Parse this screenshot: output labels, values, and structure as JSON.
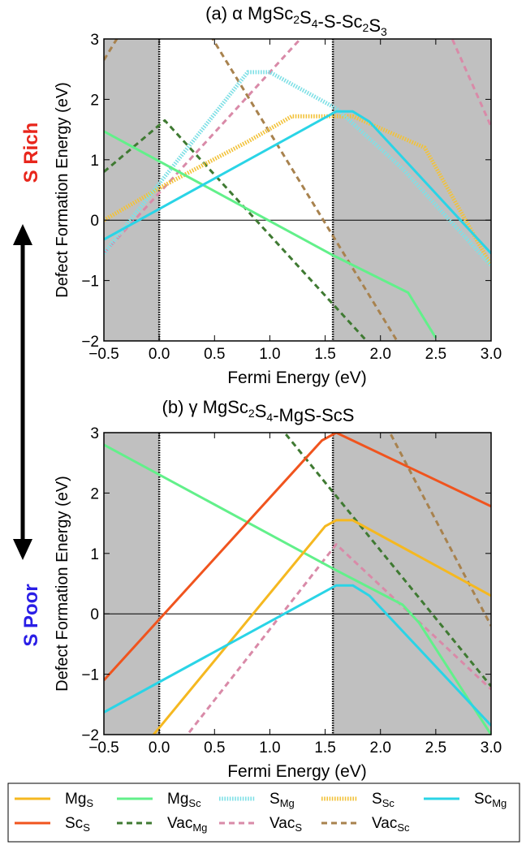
{
  "figure": {
    "side_label_top": "S Rich",
    "side_label_bottom": "S Poor",
    "colors": {
      "shade": "#c0c0c0",
      "s_rich": "#e8261c",
      "s_poor": "#2a1ee6",
      "arrow": "#000000"
    }
  },
  "legend": {
    "entries": [
      {
        "label": "Mg",
        "sub": "S",
        "color": "#f5b820",
        "style": "solid"
      },
      {
        "label": "Mg",
        "sub": "Sc",
        "color": "#62f08a",
        "style": "solid"
      },
      {
        "label": "S",
        "sub": "Mg",
        "color": "#7fe0e6",
        "style": "dotted"
      },
      {
        "label": "S",
        "sub": "Sc",
        "color": "#f2c23a",
        "style": "dotted"
      },
      {
        "label": "Sc",
        "sub": "Mg",
        "color": "#2ad4e6",
        "style": "solid"
      },
      {
        "label": "Sc",
        "sub": "S",
        "color": "#f0541e",
        "style": "solid"
      },
      {
        "label": "Vac",
        "sub": "Mg",
        "color": "#3f7a32",
        "style": "dashed"
      },
      {
        "label": "Vac",
        "sub": "S",
        "color": "#d98aa8",
        "style": "dashed"
      },
      {
        "label": "Vac",
        "sub": "Sc",
        "color": "#a8824e",
        "style": "dashed"
      }
    ]
  },
  "chart_data": [
    {
      "type": "line",
      "title_prefix": "(a) α MgSc",
      "title_parts": [
        [
          "(a) α MgSc",
          ""
        ],
        [
          "2",
          "sub"
        ],
        [
          "S",
          ""
        ],
        [
          "4",
          "sub"
        ],
        [
          "-S-Sc",
          ""
        ],
        [
          "2",
          "sub"
        ],
        [
          "S",
          ""
        ],
        [
          "3",
          "sub"
        ]
      ],
      "xlabel": "Fermi Energy (eV)",
      "ylabel": "Defect Formation Energy (eV)",
      "xlim": [
        -0.5,
        3.0
      ],
      "ylim": [
        -2,
        3
      ],
      "xticks": [
        "−0.5",
        "0.0",
        "0.5",
        "1.0",
        "1.5",
        "2.0",
        "2.5",
        "3.0"
      ],
      "xtick_values": [
        -0.5,
        0.0,
        0.5,
        1.0,
        1.5,
        2.0,
        2.5,
        3.0
      ],
      "yticks": [
        "−2",
        "−1",
        "0",
        "1",
        "2",
        "3"
      ],
      "ytick_values": [
        -2,
        -1,
        0,
        1,
        2,
        3
      ],
      "shaded_regions": [
        [
          -0.5,
          0.0
        ],
        [
          1.57,
          3.0
        ]
      ],
      "vlines": [
        0.0,
        1.57
      ],
      "hline": 0,
      "series": [
        {
          "key": "Vac_Mg",
          "x": [
            -0.5,
            0.05,
            2.0
          ],
          "y": [
            0.8,
            1.65,
            -2.25
          ]
        },
        {
          "key": "Vac_Sc",
          "x": [
            -0.5,
            0.05,
            2.2
          ],
          "y": [
            2.65,
            4.3,
            -2.15
          ]
        },
        {
          "key": "Vac_S",
          "x": [
            -0.5,
            2.2,
            3.0
          ],
          "y": [
            -0.55,
            4.85,
            1.55
          ]
        },
        {
          "key": "S_Sc",
          "x": [
            -0.5,
            0.05,
            0.8,
            1.2,
            1.75,
            2.4,
            3.0
          ],
          "y": [
            0.0,
            0.58,
            1.3,
            1.72,
            1.72,
            1.2,
            -0.75
          ]
        },
        {
          "key": "S_Mg",
          "x": [
            -0.5,
            0.8,
            1.0,
            1.6,
            2.2,
            3.0
          ],
          "y": [
            -0.55,
            2.45,
            2.45,
            1.85,
            0.85,
            -0.75
          ]
        },
        {
          "key": "Mg_Sc",
          "x": [
            -0.5,
            1.57,
            2.25,
            2.5
          ],
          "y": [
            1.47,
            -0.58,
            -1.2,
            -1.95
          ]
        },
        {
          "key": "Sc_Mg",
          "x": [
            -0.5,
            1.6,
            1.75,
            1.9,
            3.0
          ],
          "y": [
            -0.32,
            1.8,
            1.8,
            1.63,
            -0.55
          ]
        }
      ]
    },
    {
      "type": "line",
      "title_parts": [
        [
          "(b) γ MgSc",
          ""
        ],
        [
          "2",
          "sub"
        ],
        [
          "S",
          ""
        ],
        [
          "4",
          "sub"
        ],
        [
          "-MgS-ScS",
          ""
        ]
      ],
      "xlabel": "Fermi Energy (eV)",
      "ylabel": "Defect Formation Energy (eV)",
      "xlim": [
        -0.5,
        3.0
      ],
      "ylim": [
        -2,
        3
      ],
      "xticks": [
        "−0.5",
        "0.0",
        "0.5",
        "1.0",
        "1.5",
        "2.0",
        "2.5",
        "3.0"
      ],
      "xtick_values": [
        -0.5,
        0.0,
        0.5,
        1.0,
        1.5,
        2.0,
        2.5,
        3.0
      ],
      "yticks": [
        "−2",
        "−1",
        "0",
        "1",
        "2",
        "3"
      ],
      "ytick_values": [
        -2,
        -1,
        0,
        1,
        2,
        3
      ],
      "shaded_regions": [
        [
          -0.5,
          0.0
        ],
        [
          1.57,
          3.0
        ]
      ],
      "vlines": [
        0.0,
        1.57
      ],
      "hline": 0,
      "series": [
        {
          "key": "Vac_Mg",
          "x": [
            0.2,
            3.0
          ],
          "y": [
            5.1,
            -1.2
          ]
        },
        {
          "key": "Vac_Sc",
          "x": [
            1.4,
            3.0
          ],
          "y": [
            5.4,
            -0.2
          ]
        },
        {
          "key": "Vac_S",
          "x": [
            0.0,
            1.6,
            3.0
          ],
          "y": [
            -2.6,
            1.15,
            -1.25
          ]
        },
        {
          "key": "Mg_Sc",
          "x": [
            -0.5,
            1.6,
            2.2,
            2.35,
            3.0
          ],
          "y": [
            2.8,
            0.72,
            0.15,
            -0.15,
            -2.0
          ]
        },
        {
          "key": "Sc_S",
          "x": [
            -0.5,
            1.47,
            1.6,
            3.0
          ],
          "y": [
            -1.1,
            2.87,
            3.0,
            1.78
          ]
        },
        {
          "key": "Mg_S",
          "x": [
            -0.5,
            1.5,
            1.6,
            1.75,
            3.0
          ],
          "y": [
            -3.0,
            1.45,
            1.55,
            1.55,
            0.3
          ]
        },
        {
          "key": "Sc_Mg",
          "x": [
            -0.5,
            1.6,
            1.75,
            1.9,
            3.0
          ],
          "y": [
            -1.63,
            0.47,
            0.47,
            0.3,
            -1.85
          ]
        }
      ]
    }
  ]
}
